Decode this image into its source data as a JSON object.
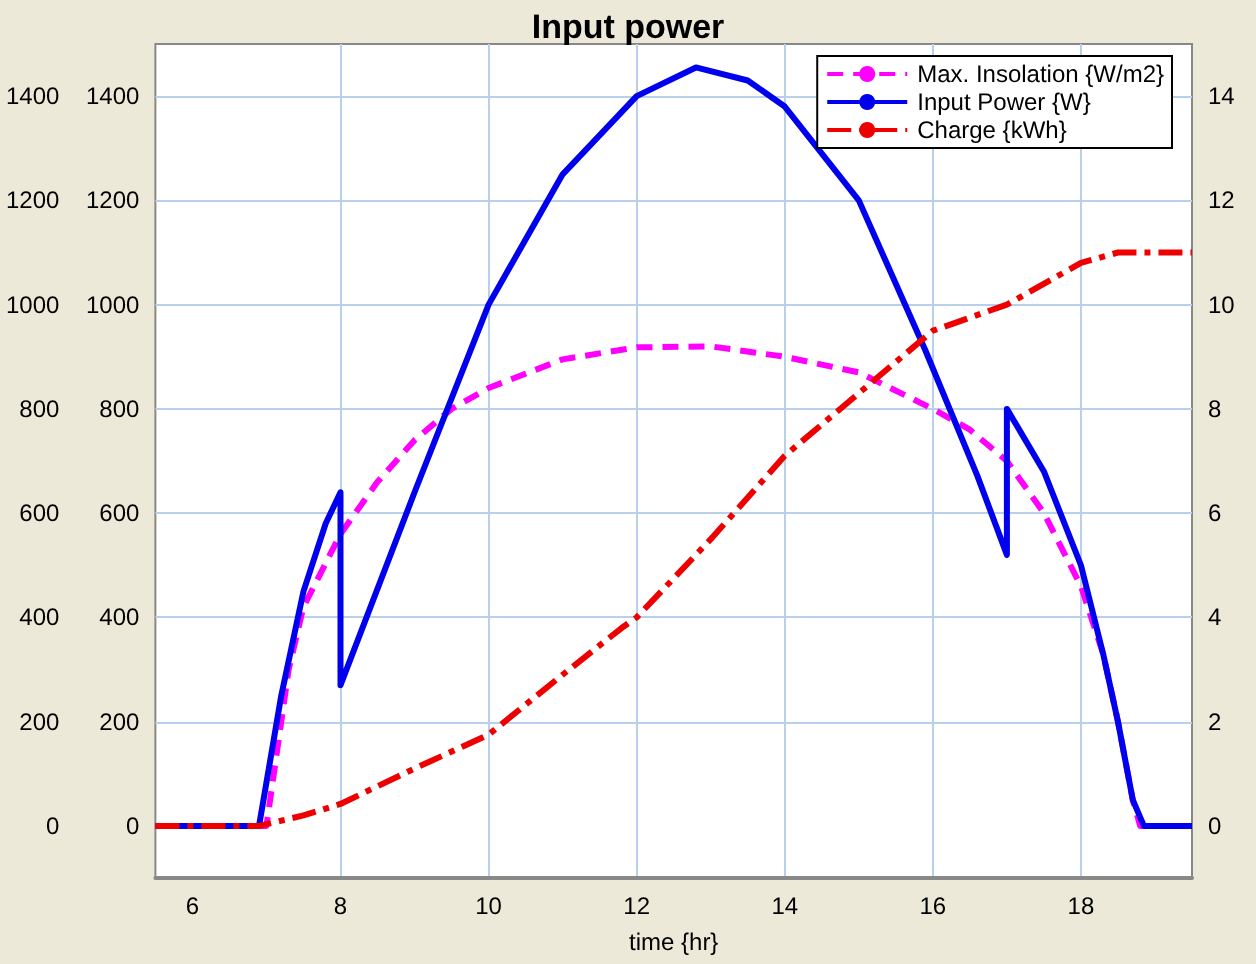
{
  "chart_data": {
    "type": "line",
    "title": "Input power",
    "xlabel": "time {hr}",
    "xlim": [
      5.5,
      19.5
    ],
    "xticks": [
      6,
      8,
      10,
      12,
      14,
      16,
      18
    ],
    "ylim": [
      -100,
      1500
    ],
    "yticks": [
      0,
      200,
      400,
      600,
      800,
      1000,
      1200,
      1400
    ],
    "y3lim": [
      -100,
      1500
    ],
    "y3ticks": [
      0,
      200,
      400,
      600,
      800,
      1000,
      1200,
      1400
    ],
    "y2lim": [
      -1,
      15
    ],
    "y2ticks": [
      0,
      2,
      4,
      6,
      8,
      10,
      12,
      14
    ],
    "grid": true,
    "legend": "top right",
    "marker": "none",
    "series": [
      {
        "name": "Max. Insolation {W/m2}",
        "color": "#ff00ff",
        "line_style": "dashed",
        "x": [
          5.5,
          7.0,
          7.3,
          7.5,
          8.0,
          8.5,
          9.0,
          9.5,
          10,
          11,
          12,
          13,
          14,
          15,
          16,
          16.5,
          17,
          17.5,
          18,
          18.3,
          18.5,
          18.7,
          18.8,
          19.5
        ],
        "values": [
          0,
          0,
          300,
          420,
          560,
          660,
          740,
          800,
          840,
          895,
          918,
          920,
          900,
          870,
          800,
          760,
          700,
          600,
          460,
          330,
          200,
          50,
          0,
          0
        ]
      },
      {
        "name": "Input Power {W}",
        "color": "#0000ee",
        "line_style": "solid",
        "x": [
          5.5,
          6.9,
          7.2,
          7.5,
          7.8,
          8.0,
          8.0,
          9,
          10,
          11,
          12,
          12.8,
          13.5,
          14,
          15,
          15.9,
          16.6,
          17.0,
          17.0,
          17.5,
          18,
          18.3,
          18.5,
          18.7,
          18.85,
          19.5
        ],
        "values": [
          0,
          0,
          250,
          450,
          580,
          640,
          270,
          640,
          1000,
          1250,
          1400,
          1455,
          1430,
          1380,
          1200,
          912,
          672,
          520,
          800,
          680,
          500,
          330,
          200,
          50,
          0,
          0
        ]
      },
      {
        "name": "Charge {kWh}",
        "color": "#ee0000",
        "line_style": "dashdot",
        "axis": "y2",
        "x": [
          5.5,
          6.9,
          7.5,
          8,
          9,
          10,
          11,
          11.8,
          12,
          13,
          14,
          15,
          16,
          17,
          18,
          18.5,
          19.5
        ],
        "values": [
          0,
          0,
          0.2,
          0.42,
          1.1,
          1.75,
          2.9,
          3.8,
          4.0,
          5.5,
          7.1,
          8.3,
          9.5,
          10.0,
          10.8,
          11.0,
          11.0
        ]
      }
    ]
  }
}
